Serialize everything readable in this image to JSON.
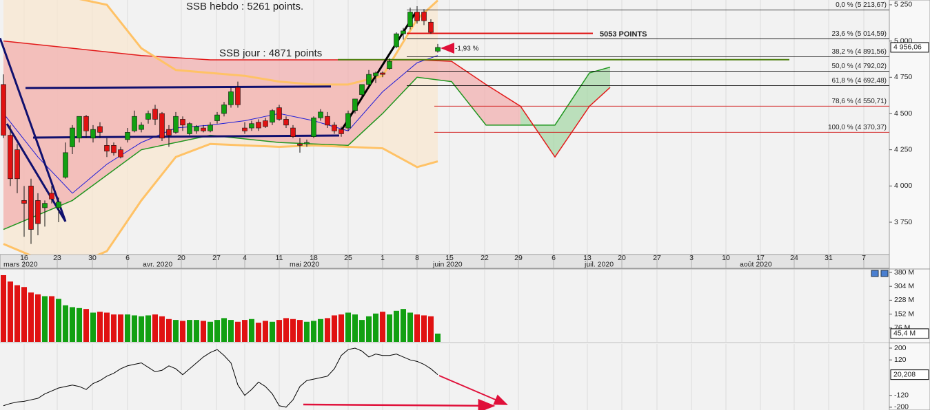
{
  "chart_data": [
    {
      "type": "candlestick",
      "xlim": [
        -3.5,
        125.5
      ],
      "ylim": [
        3527,
        5283
      ],
      "grid": true,
      "up_color": "#12a012",
      "down_color": "#e01212",
      "xticks": [
        {
          "value": 0,
          "label": "16"
        },
        {
          "value": 4.8,
          "label": "23"
        },
        {
          "value": 9.9,
          "label": "30"
        },
        {
          "value": 15,
          "label": "6"
        },
        {
          "value": 22.8,
          "label": "20"
        },
        {
          "value": 27.9,
          "label": "27"
        },
        {
          "value": 32,
          "label": "4"
        },
        {
          "value": 37,
          "label": "11"
        },
        {
          "value": 42,
          "label": "18"
        },
        {
          "value": 47,
          "label": "25"
        },
        {
          "value": 52,
          "label": "1"
        },
        {
          "value": 57,
          "label": "8"
        },
        {
          "value": 61.7,
          "label": "15"
        },
        {
          "value": 66.8,
          "label": "22"
        },
        {
          "value": 71.7,
          "label": "29"
        },
        {
          "value": 76.8,
          "label": "6"
        },
        {
          "value": 81.7,
          "label": "13"
        },
        {
          "value": 86.7,
          "label": "20"
        },
        {
          "value": 91.8,
          "label": "27"
        },
        {
          "value": 96.8,
          "label": "3"
        },
        {
          "value": 101.8,
          "label": "10"
        },
        {
          "value": 106.8,
          "label": "17"
        },
        {
          "value": 111.7,
          "label": "24"
        },
        {
          "value": 116.7,
          "label": "31"
        },
        {
          "value": 121.8,
          "label": "7"
        }
      ],
      "month_labels": [
        {
          "value": -3,
          "label": "mars 2020"
        },
        {
          "value": 17.2,
          "label": "avr. 2020"
        },
        {
          "value": 38.5,
          "label": "mai 2020"
        },
        {
          "value": 59.3,
          "label": "juin 2020"
        },
        {
          "value": 81.3,
          "label": "juil. 2020"
        },
        {
          "value": 103.8,
          "label": "août 2020"
        }
      ],
      "yticks": [
        {
          "value": 3750,
          "label": "3 750"
        },
        {
          "value": 4000,
          "label": "4 000"
        },
        {
          "value": 4250,
          "label": "4 250"
        },
        {
          "value": 4500,
          "label": "4 500"
        },
        {
          "value": 4750,
          "label": "4 750"
        },
        {
          "value": 5000,
          "label": "5 000"
        },
        {
          "value": 5250,
          "label": "5 250"
        }
      ],
      "x": [
        -3,
        -2,
        -1,
        0,
        1,
        2,
        3,
        4,
        5,
        6,
        7,
        8,
        9,
        10,
        11,
        12,
        13,
        14,
        15,
        16,
        17,
        18,
        19,
        20,
        21,
        22,
        23,
        24,
        25,
        26,
        27,
        28,
        29,
        30,
        31,
        32,
        33,
        34,
        35,
        36,
        37,
        38,
        39,
        40,
        41,
        42,
        43,
        44,
        45,
        46,
        47,
        48,
        49,
        50,
        51,
        52,
        53,
        54,
        55,
        56,
        57,
        58,
        59,
        60
      ],
      "open": [
        4700,
        4350,
        4250,
        3900,
        4000,
        3900,
        3850,
        3950,
        3850,
        4060,
        4270,
        4330,
        4480,
        4330,
        4410,
        4280,
        4280,
        4250,
        4320,
        4380,
        4390,
        4460,
        4530,
        4500,
        4390,
        4370,
        4460,
        4360,
        4380,
        4400,
        4380,
        4450,
        4500,
        4560,
        4680,
        4400,
        4400,
        4440,
        4450,
        4440,
        4540,
        4460,
        4400,
        4290,
        4290,
        4340,
        4470,
        4480,
        4420,
        4390,
        4400,
        4520,
        4630,
        4700,
        4760,
        4780,
        4810,
        4960,
        5050,
        5100,
        5200,
        5200,
        5130,
        4930
      ],
      "high": [
        4770,
        4420,
        4290,
        4000,
        4050,
        3950,
        3900,
        4000,
        3920,
        4300,
        4420,
        4480,
        4490,
        4420,
        4440,
        4330,
        4300,
        4270,
        4400,
        4520,
        4440,
        4520,
        4560,
        4510,
        4420,
        4510,
        4480,
        4440,
        4420,
        4420,
        4440,
        4510,
        4580,
        4680,
        4720,
        4440,
        4450,
        4460,
        4470,
        4530,
        4560,
        4480,
        4420,
        4330,
        4320,
        4480,
        4530,
        4510,
        4440,
        4410,
        4520,
        4600,
        4700,
        4800,
        4790,
        4790,
        4880,
        5060,
        5090,
        5230,
        5240,
        5220,
        5150,
        4980
      ],
      "low": [
        4330,
        4000,
        3950,
        3650,
        3600,
        3660,
        3720,
        3880,
        3750,
        4050,
        4220,
        4300,
        4330,
        4300,
        4330,
        4200,
        4210,
        4190,
        4300,
        4370,
        4370,
        4430,
        4420,
        4310,
        4270,
        4360,
        4380,
        4350,
        4360,
        4370,
        4370,
        4430,
        4480,
        4540,
        4540,
        4360,
        4380,
        4380,
        4400,
        4420,
        4450,
        4400,
        4330,
        4230,
        4270,
        4330,
        4450,
        4400,
        4360,
        4340,
        4380,
        4500,
        4610,
        4680,
        4710,
        4750,
        4800,
        4950,
        5010,
        5080,
        5120,
        5110,
        5050,
        4920
      ],
      "close": [
        4350,
        4050,
        4050,
        3880,
        3700,
        3740,
        3880,
        3910,
        3890,
        4230,
        4400,
        4480,
        4380,
        4390,
        4370,
        4240,
        4230,
        4200,
        4370,
        4480,
        4420,
        4500,
        4460,
        4330,
        4350,
        4480,
        4420,
        4430,
        4410,
        4380,
        4420,
        4490,
        4560,
        4650,
        4560,
        4380,
        4430,
        4400,
        4410,
        4520,
        4460,
        4420,
        4340,
        4280,
        4300,
        4470,
        4510,
        4420,
        4380,
        4360,
        4500,
        4600,
        4700,
        4770,
        4780,
        4770,
        4860,
        5050,
        5070,
        5200,
        5140,
        5140,
        5060,
        4956.06
      ],
      "last_label": {
        "value": 4956.06,
        "label": "4 956,06"
      },
      "bollinger": {
        "color": "#ffc266",
        "fill": "#f9e7cf",
        "x": [
          -3,
          2,
          7,
          12,
          17,
          22,
          27,
          32,
          37,
          42,
          47,
          52,
          57,
          60
        ],
        "upper": [
          5300,
          5300,
          5300,
          5250,
          4950,
          4800,
          4780,
          4760,
          4720,
          4700,
          4700,
          4760,
          5150,
          5280
        ],
        "lower": [
          3600,
          3500,
          3450,
          3550,
          3900,
          4200,
          4290,
          4280,
          4270,
          4280,
          4270,
          4260,
          4130,
          4170
        ]
      },
      "cloud": {
        "x": [
          -3,
          7,
          17,
          27,
          37,
          47,
          52,
          57,
          62,
          67,
          72,
          77,
          82,
          85
        ],
        "span_a": [
          3700,
          3900,
          4250,
          4350,
          4300,
          4280,
          4500,
          4750,
          4720,
          4420,
          4420,
          4420,
          4780,
          4820
        ],
        "span_b": [
          5000,
          4950,
          4900,
          4870,
          4870,
          4870,
          4870,
          4870,
          4860,
          4700,
          4550,
          4200,
          4550,
          4680
        ],
        "color_a": "#1f961f",
        "color_b": "#e21a1a",
        "fill_a": "#a8d8a8",
        "fill_b": "#f2b0b0"
      },
      "tenkan": {
        "color": "#1c1cd8",
        "x": [
          -3,
          2,
          7,
          12,
          17,
          22,
          27,
          32,
          37,
          42,
          47,
          52,
          57,
          60
        ],
        "values": [
          4500,
          4200,
          3950,
          4150,
          4300,
          4400,
          4420,
          4450,
          4500,
          4450,
          4380,
          4650,
          4850,
          4900
        ]
      },
      "trendlines": [
        {
          "color": "#10106e",
          "x": [
            -3.5,
            6
          ],
          "y": [
            5020,
            3755
          ]
        },
        {
          "color": "#10106e",
          "x": [
            -2.5,
            6
          ],
          "y": [
            4429,
            3755
          ]
        },
        {
          "color": "#10106e",
          "x": [
            0.2,
            44.5
          ],
          "y": [
            4676,
            4686
          ]
        },
        {
          "color": "#10106e",
          "x": [
            1.3,
            45.7
          ],
          "y": [
            4334,
            4348
          ]
        },
        {
          "color": "#000000",
          "x": [
            45.8,
            56.8
          ],
          "y": [
            4367,
            5198
          ]
        }
      ],
      "levels": [
        {
          "value": 5213.67,
          "label": "0,0 % (5 213,67)",
          "color": "#000000",
          "x": [
            55.5,
            125.5
          ]
        },
        {
          "value": 5014.59,
          "label": "23,6 % (5 014,59)",
          "color": "#000000",
          "x": [
            55.5,
            125.5
          ]
        },
        {
          "value": 4891.56,
          "label": "38,2 % (4 891,56)",
          "color": "#000000",
          "x": [
            55.5,
            125.5
          ]
        },
        {
          "value": 4792.02,
          "label": "50,0 % (4 792,02)",
          "color": "#000000",
          "x": [
            55.5,
            125.5
          ]
        },
        {
          "value": 4692.48,
          "label": "61,8 % (4 692,48)",
          "color": "#000000",
          "x": [
            55.5,
            125.5
          ]
        },
        {
          "value": 4550.71,
          "label": "78,6 % (4 550,71)",
          "color": "#d01010",
          "x": [
            59.5,
            125.5
          ]
        },
        {
          "value": 4370.37,
          "label": "100,0 % (4 370,37)",
          "color": "#d01010",
          "x": [
            59.5,
            125.5
          ]
        }
      ],
      "hlines": [
        {
          "value": 5053,
          "x": [
            55.5,
            82.5
          ],
          "color": "#e01212"
        },
        {
          "value": 4871,
          "x": [
            45.5,
            111
          ],
          "color": "#4f8010"
        }
      ],
      "annotations": [
        {
          "text": "SSB hebdo : 5261 points.",
          "x": 23.5,
          "y": 5236,
          "color": "#1a1a9a"
        },
        {
          "text": "SSB jour : 4871 points",
          "x": 28.3,
          "y": 4913,
          "color": "#1a1a9a"
        },
        {
          "text": "5053 POINTS",
          "x": 83.5,
          "y": 5046,
          "color": "#1a1a80"
        },
        {
          "text": "-1,93 %",
          "x": 62.5,
          "y": 4946,
          "color": "#e01212"
        }
      ]
    },
    {
      "type": "bar",
      "xlim": [
        -3.5,
        125.5
      ],
      "ylim": [
        0,
        395
      ],
      "yticks": [
        {
          "value": 380,
          "label": "380 M"
        },
        {
          "value": 304,
          "label": "304 M"
        },
        {
          "value": 228,
          "label": "228 M"
        },
        {
          "value": 152,
          "label": "152 M"
        },
        {
          "value": 76,
          "label": "76 M"
        }
      ],
      "values": [
        365,
        330,
        310,
        300,
        270,
        260,
        250,
        250,
        235,
        200,
        190,
        185,
        180,
        160,
        165,
        160,
        150,
        150,
        150,
        145,
        140,
        145,
        150,
        140,
        125,
        120,
        115,
        120,
        120,
        115,
        110,
        120,
        130,
        120,
        110,
        120,
        125,
        105,
        115,
        110,
        120,
        130,
        125,
        120,
        110,
        115,
        125,
        130,
        145,
        150,
        160,
        150,
        120,
        140,
        155,
        165,
        150,
        170,
        180,
        160,
        150,
        145,
        140,
        45.4
      ],
      "last_label": {
        "value": 45.4,
        "label": "45,4 M"
      }
    },
    {
      "type": "line",
      "xlim": [
        -3.5,
        125.5
      ],
      "ylim": [
        -219,
        228
      ],
      "color": "#000000",
      "yticks": [
        200,
        120,
        -120,
        -200
      ],
      "values": [
        -190,
        -175,
        -165,
        -160,
        -150,
        -140,
        -110,
        -90,
        -70,
        -60,
        -50,
        -60,
        -80,
        -40,
        -20,
        10,
        30,
        60,
        80,
        90,
        100,
        70,
        40,
        50,
        80,
        60,
        20,
        60,
        100,
        140,
        170,
        190,
        150,
        100,
        -50,
        -120,
        -80,
        -30,
        -60,
        -110,
        -190,
        -200,
        -150,
        -60,
        -20,
        -10,
        0,
        10,
        60,
        150,
        190,
        200,
        180,
        140,
        160,
        150,
        150,
        160,
        140,
        120,
        110,
        90,
        60,
        20.208
      ],
      "last_label": {
        "value": 20.208,
        "label": "20,208"
      }
    }
  ]
}
